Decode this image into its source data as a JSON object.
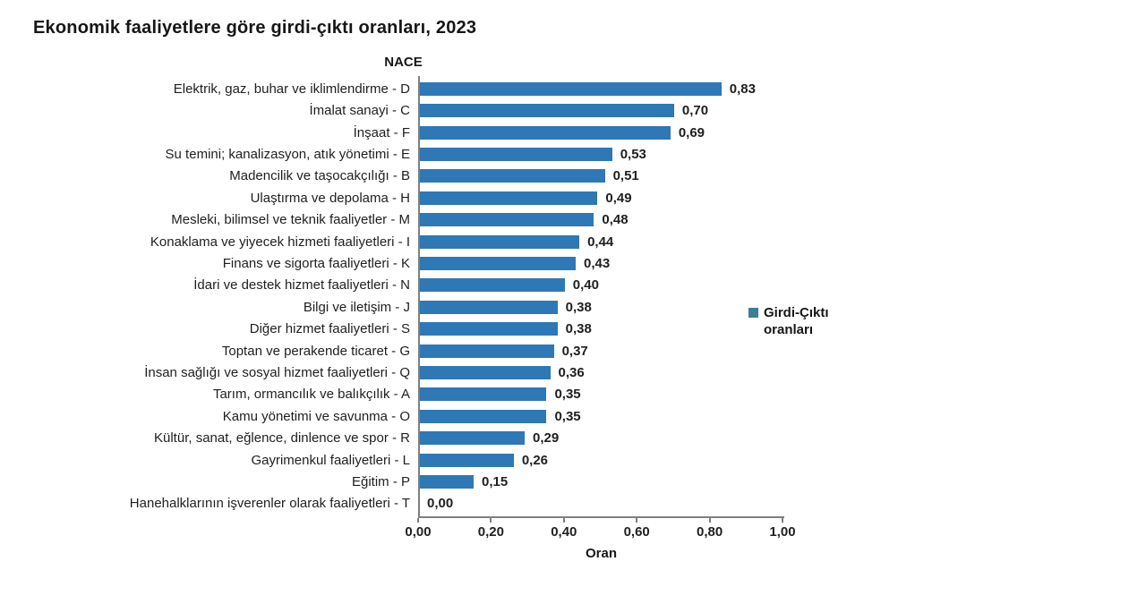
{
  "page": {
    "background_color": "#ffffff"
  },
  "chart_data": {
    "type": "bar",
    "orientation": "horizontal",
    "title": "Ekonomik faaliyetlere göre girdi-çıktı oranları, 2023",
    "axis_title_y": "NACE",
    "axis_title_x": "Oran",
    "xlim": [
      0,
      1
    ],
    "xtick_labels": [
      "0,00",
      "0,20",
      "0,40",
      "0,60",
      "0,80",
      "1,00"
    ],
    "xtick_values": [
      0,
      0.2,
      0.4,
      0.6,
      0.8,
      1.0
    ],
    "grid": "off",
    "bar_color": "#2E78B6",
    "axis_color": "#7f7f7f",
    "legend": {
      "label": "Girdi-Çıktı oranları",
      "position": "right",
      "marker_color": "#3D7E99"
    },
    "series_name": "Girdi-Çıktı oranları",
    "categories": [
      "Elektrik, gaz, buhar ve iklimlendirme - D",
      "İmalat sanayi - C",
      "İnşaat - F",
      "Su temini; kanalizasyon, atık yönetimi - E",
      "Madencilik ve taşocakçılığı - B",
      "Ulaştırma ve depolama - H",
      "Mesleki, bilimsel ve teknik faaliyetler - M",
      "Konaklama ve yiyecek hizmeti faaliyetleri - I",
      "Finans ve sigorta faaliyetleri - K",
      "İdari ve destek hizmet faaliyetleri - N",
      "Bilgi ve iletişim - J",
      "Diğer hizmet faaliyetleri - S",
      "Toptan ve perakende ticaret - G",
      "İnsan sağlığı ve sosyal hizmet faaliyetleri - Q",
      "Tarım, ormancılık ve balıkçılık - A",
      "Kamu yönetimi ve savunma - O",
      "Kültür, sanat, eğlence, dinlence ve spor - R",
      "Gayrimenkul faaliyetleri - L",
      "Eğitim - P",
      "Hanehalklarının işverenler olarak faaliyetleri - T"
    ],
    "values": [
      0.83,
      0.7,
      0.69,
      0.53,
      0.51,
      0.49,
      0.48,
      0.44,
      0.43,
      0.4,
      0.38,
      0.38,
      0.37,
      0.36,
      0.35,
      0.35,
      0.29,
      0.26,
      0.15,
      0.0
    ],
    "value_labels": [
      "0,83",
      "0,70",
      "0,69",
      "0,53",
      "0,51",
      "0,49",
      "0,48",
      "0,44",
      "0,43",
      "0,40",
      "0,38",
      "0,38",
      "0,37",
      "0,36",
      "0,35",
      "0,35",
      "0,29",
      "0,26",
      "0,15",
      "0,00"
    ]
  }
}
